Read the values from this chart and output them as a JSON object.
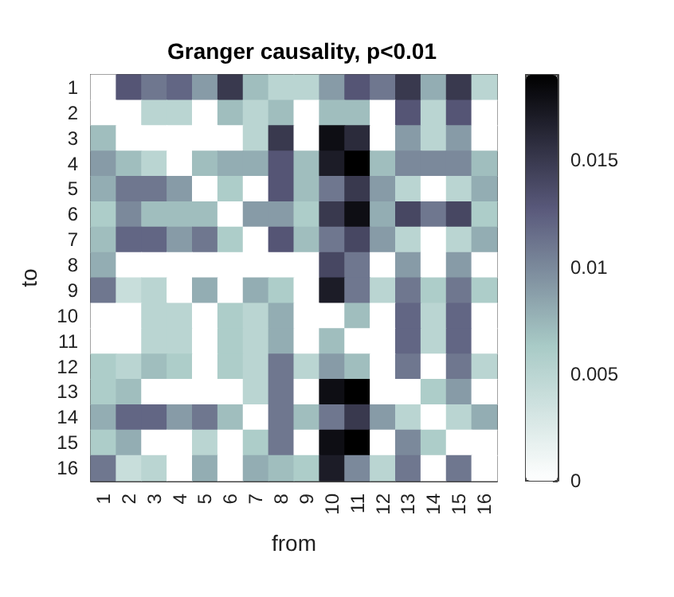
{
  "chart_data": {
    "type": "heatmap",
    "title": "Granger causality, p<0.01",
    "xlabel": "from",
    "ylabel": "to",
    "categories": [
      "1",
      "2",
      "3",
      "4",
      "5",
      "6",
      "7",
      "8",
      "9",
      "10",
      "11",
      "12",
      "13",
      "14",
      "15",
      "16"
    ],
    "y_categories": [
      "1",
      "2",
      "3",
      "4",
      "5",
      "6",
      "7",
      "8",
      "9",
      "10",
      "11",
      "12",
      "13",
      "14",
      "15",
      "16"
    ],
    "cells": [
      [
        0,
        0.013,
        0.011,
        0.012,
        0.009,
        0.015,
        0.007,
        0.005,
        0.005,
        0.009,
        0.013,
        0.011,
        0.015,
        0.008,
        0.015,
        0.005
      ],
      [
        0,
        0,
        0.005,
        0.005,
        0,
        0.007,
        0.005,
        0.007,
        0,
        0.007,
        0.007,
        0,
        0.013,
        0.005,
        0.013,
        0
      ],
      [
        0.007,
        0,
        0,
        0,
        0,
        0,
        0.005,
        0.015,
        0,
        0.018,
        0.016,
        0,
        0.009,
        0.005,
        0.009,
        0
      ],
      [
        0.009,
        0.007,
        0.005,
        0,
        0.007,
        0.008,
        0.008,
        0.013,
        0.007,
        0.017,
        0.019,
        0.007,
        0.01,
        0.01,
        0.01,
        0.007
      ],
      [
        0.008,
        0.011,
        0.011,
        0.009,
        0,
        0.006,
        0,
        0.013,
        0.007,
        0.011,
        0.015,
        0.009,
        0.005,
        0,
        0.005,
        0.008
      ],
      [
        0.006,
        0.01,
        0.007,
        0.007,
        0.007,
        0,
        0.009,
        0.009,
        0.006,
        0.015,
        0.018,
        0.008,
        0.014,
        0.011,
        0.014,
        0.006
      ],
      [
        0.007,
        0.012,
        0.012,
        0.009,
        0.011,
        0.006,
        0,
        0.013,
        0.007,
        0.011,
        0.014,
        0.009,
        0.005,
        0,
        0.005,
        0.008
      ],
      [
        0.008,
        0,
        0,
        0,
        0,
        0,
        0,
        0,
        0,
        0.014,
        0.011,
        0,
        0.009,
        0,
        0.009,
        0
      ],
      [
        0.011,
        0.004,
        0.005,
        0,
        0.008,
        0,
        0.008,
        0.006,
        0,
        0.017,
        0.011,
        0.005,
        0.011,
        0.006,
        0.011,
        0.006
      ],
      [
        0,
        0,
        0.005,
        0.005,
        0,
        0.006,
        0.005,
        0.008,
        0,
        0,
        0.007,
        0,
        0.012,
        0.005,
        0.012,
        0
      ],
      [
        0,
        0,
        0.005,
        0.005,
        0,
        0.006,
        0.005,
        0.008,
        0,
        0.007,
        0,
        0,
        0.012,
        0.005,
        0.012,
        0
      ],
      [
        0.006,
        0.005,
        0.007,
        0.006,
        0,
        0.006,
        0.005,
        0.011,
        0.005,
        0.009,
        0.007,
        0,
        0.011,
        0,
        0.011,
        0.005
      ],
      [
        0.006,
        0.007,
        0,
        0,
        0,
        0,
        0.005,
        0.011,
        0,
        0.018,
        0.019,
        0,
        0,
        0.006,
        0.009,
        0
      ],
      [
        0.008,
        0.012,
        0.012,
        0.009,
        0.011,
        0.007,
        0,
        0.011,
        0.007,
        0.011,
        0.015,
        0.009,
        0.005,
        0,
        0.005,
        0.008
      ],
      [
        0.006,
        0.008,
        0,
        0,
        0.005,
        0,
        0.006,
        0.011,
        0,
        0.018,
        0.019,
        0,
        0.01,
        0.006,
        0,
        0
      ],
      [
        0.011,
        0.004,
        0.005,
        0,
        0.008,
        0,
        0.008,
        0.007,
        0.006,
        0.017,
        0.01,
        0.005,
        0.011,
        0,
        0.011,
        0
      ]
    ],
    "clim": [
      0,
      0.019
    ],
    "cticks": [
      0,
      0.005,
      0.01,
      0.015
    ]
  }
}
